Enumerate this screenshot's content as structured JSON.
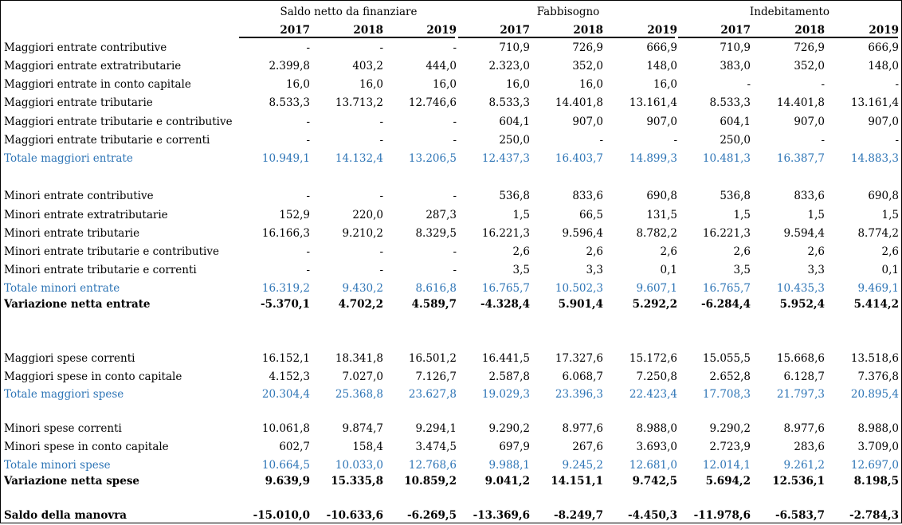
{
  "header": {
    "groups": [
      "Saldo netto da finanziare",
      "Fabbisogno",
      "Indebitamento"
    ],
    "years": [
      "2017",
      "2018",
      "2019",
      "2017",
      "2018",
      "2019",
      "2017",
      "2018",
      "2019"
    ]
  },
  "rows": [
    {
      "label": "Maggiori entrate contributive",
      "values": [
        "-",
        "-",
        "-",
        "710,9",
        "726,9",
        "666,9",
        "710,9",
        "726,9",
        "666,9"
      ]
    },
    {
      "label": "Maggiori entrate extratributarie",
      "values": [
        "2.399,8",
        "403,2",
        "444,0",
        "2.323,0",
        "352,0",
        "148,0",
        "383,0",
        "352,0",
        "148,0"
      ]
    },
    {
      "label": "Maggiori entrate in conto capitale",
      "values": [
        "16,0",
        "16,0",
        "16,0",
        "16,0",
        "16,0",
        "16,0",
        "-",
        "-",
        "-"
      ]
    },
    {
      "label": "Maggiori entrate tributarie",
      "values": [
        "8.533,3",
        "13.713,2",
        "12.746,6",
        "8.533,3",
        "14.401,8",
        "13.161,4",
        "8.533,3",
        "14.401,8",
        "13.161,4"
      ]
    },
    {
      "label": "Maggiori entrate tributarie e contributive",
      "values": [
        "-",
        "-",
        "-",
        "604,1",
        "907,0",
        "907,0",
        "604,1",
        "907,0",
        "907,0"
      ]
    },
    {
      "label": "Maggiori entrate tributarie e correnti",
      "values": [
        "-",
        "-",
        "-",
        "250,0",
        "-",
        "-",
        "250,0",
        "-",
        "-"
      ]
    },
    {
      "label": "Totale maggiori entrate",
      "values": [
        "10.949,1",
        "14.132,4",
        "13.206,5",
        "12.437,3",
        "16.403,7",
        "14.899,3",
        "10.481,3",
        "16.387,7",
        "14.883,3"
      ],
      "style": "blue"
    },
    {
      "label": "Minori entrate contributive",
      "values": [
        "-",
        "-",
        "-",
        "536,8",
        "833,6",
        "690,8",
        "536,8",
        "833,6",
        "690,8"
      ]
    },
    {
      "label": "Minori entrate extratributarie",
      "values": [
        "152,9",
        "220,0",
        "287,3",
        "1,5",
        "66,5",
        "131,5",
        "1,5",
        "1,5",
        "1,5"
      ]
    },
    {
      "label": "Minori entrate tributarie",
      "values": [
        "16.166,3",
        "9.210,2",
        "8.329,5",
        "16.221,3",
        "9.596,4",
        "8.782,2",
        "16.221,3",
        "9.594,4",
        "8.774,2"
      ]
    },
    {
      "label": "Minori entrate tributarie e contributive",
      "values": [
        "-",
        "-",
        "-",
        "2,6",
        "2,6",
        "2,6",
        "2,6",
        "2,6",
        "2,6"
      ]
    },
    {
      "label": "Minori entrate tributarie e correnti",
      "values": [
        "-",
        "-",
        "-",
        "3,5",
        "3,3",
        "0,1",
        "3,5",
        "3,3",
        "0,1"
      ]
    },
    {
      "label": "Totale minori entrate",
      "values": [
        "16.319,2",
        "9.430,2",
        "8.616,8",
        "16.765,7",
        "10.502,3",
        "9.607,1",
        "16.765,7",
        "10.435,3",
        "9.469,1"
      ],
      "style": "blue"
    },
    {
      "label": "Variazione netta entrate",
      "values": [
        "-5.370,1",
        "4.702,2",
        "4.589,7",
        "-4.328,4",
        "5.901,4",
        "5.292,2",
        "-6.284,4",
        "5.952,4",
        "5.414,2"
      ],
      "style": "bold"
    },
    {
      "label": "Maggiori spese correnti",
      "values": [
        "16.152,1",
        "18.341,8",
        "16.501,2",
        "16.441,5",
        "17.327,6",
        "15.172,6",
        "15.055,5",
        "15.668,6",
        "13.518,6"
      ]
    },
    {
      "label": "Maggiori spese in conto capitale",
      "values": [
        "4.152,3",
        "7.027,0",
        "7.126,7",
        "2.587,8",
        "6.068,7",
        "7.250,8",
        "2.652,8",
        "6.128,7",
        "7.376,8"
      ]
    },
    {
      "label": "Totale maggiori spese",
      "values": [
        "20.304,4",
        "25.368,8",
        "23.627,8",
        "19.029,3",
        "23.396,3",
        "22.423,4",
        "17.708,3",
        "21.797,3",
        "20.895,4"
      ],
      "style": "blue"
    },
    {
      "label": "Minori spese correnti",
      "values": [
        "10.061,8",
        "9.874,7",
        "9.294,1",
        "9.290,2",
        "8.977,6",
        "8.988,0",
        "9.290,2",
        "8.977,6",
        "8.988,0"
      ]
    },
    {
      "label": "Minori spese in conto capitale",
      "values": [
        "602,7",
        "158,4",
        "3.474,5",
        "697,9",
        "267,6",
        "3.693,0",
        "2.723,9",
        "283,6",
        "3.709,0"
      ]
    },
    {
      "label": "Totale minori spese",
      "values": [
        "10.664,5",
        "10.033,0",
        "12.768,6",
        "9.988,1",
        "9.245,2",
        "12.681,0",
        "12.014,1",
        "9.261,2",
        "12.697,0"
      ],
      "style": "blue"
    },
    {
      "label": "Variazione netta spese",
      "values": [
        "9.639,9",
        "15.335,8",
        "10.859,2",
        "9.041,2",
        "14.151,1",
        "9.742,5",
        "5.694,2",
        "12.536,1",
        "8.198,5"
      ],
      "style": "bold"
    },
    {
      "label": "Saldo della manovra",
      "values": [
        "-15.010,0",
        "-10.633,6",
        "-6.269,5",
        "-13.369,6",
        "-8.249,7",
        "-4.450,3",
        "-11.978,6",
        "-6.583,7",
        "-2.784,3"
      ],
      "style": "bold"
    }
  ],
  "colors": {
    "total": "#2E75B6",
    "text": "#000000"
  }
}
